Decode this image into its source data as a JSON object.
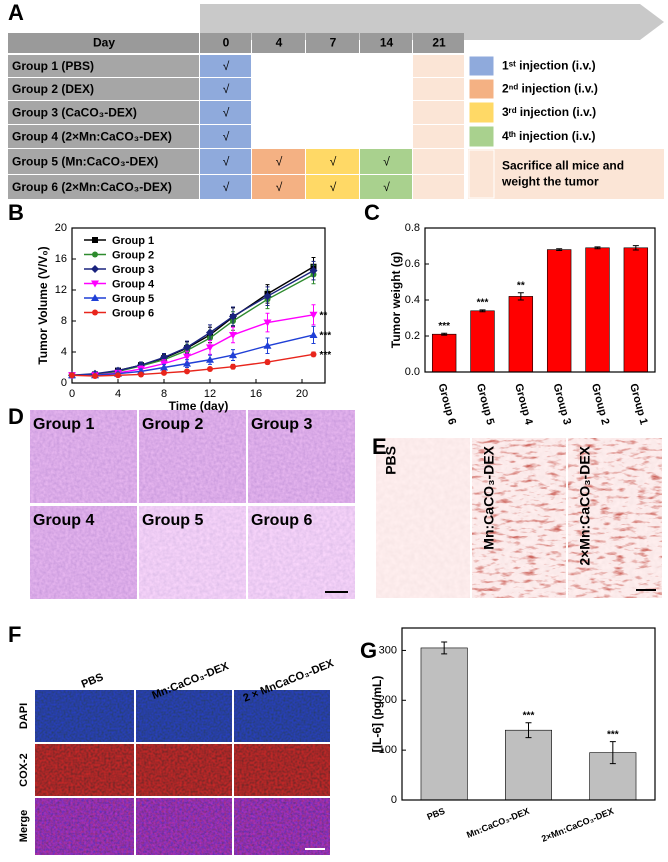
{
  "panel_labels": [
    "A",
    "B",
    "C",
    "D",
    "E",
    "F",
    "G"
  ],
  "schedule": {
    "header": [
      "Day",
      "0",
      "4",
      "7",
      "14",
      "21"
    ],
    "day_colors": [
      "#8faadc",
      "#f4b183",
      "#ffd966",
      "#a9d18e",
      "#fbe5d6"
    ],
    "rows": [
      {
        "name": "Group 1 (PBS)",
        "cells": [
          "√",
          null,
          null,
          null,
          null
        ]
      },
      {
        "name": "Group 2 (DEX)",
        "cells": [
          "√",
          null,
          null,
          null,
          null
        ]
      },
      {
        "name": "Group 3 (CaCO₃-DEX)",
        "cells": [
          "√",
          null,
          null,
          null,
          null
        ]
      },
      {
        "name": "Group 4 (2×Mn:CaCO₃-DEX)",
        "cells": [
          "√",
          null,
          null,
          null,
          null
        ]
      },
      {
        "name": "Group 5 (Mn:CaCO₃-DEX)",
        "cells": [
          "√",
          "√",
          "√",
          "√",
          null
        ]
      },
      {
        "name": "Group 6 (2×Mn:CaCO₃-DEX)",
        "cells": [
          "√",
          "√",
          "√",
          "√",
          null
        ]
      }
    ],
    "legend": [
      {
        "color": "#8faadc",
        "label": [
          "1ˢᵗ injection (i.v.)"
        ]
      },
      {
        "color": "#f4b183",
        "label": [
          "2ⁿᵈ injection (i.v.)"
        ]
      },
      {
        "color": "#ffd966",
        "label": [
          "3ʳᵈ injection (i.v.)"
        ]
      },
      {
        "color": "#a9d18e",
        "label": [
          "4ᵗʰ injection (i.v.)"
        ]
      },
      {
        "color": "#fbe5d6",
        "label": [
          "Sacrifice all mice and",
          "weight the tumor"
        ]
      }
    ]
  },
  "chart_data": [
    {
      "type": "line",
      "xlabel": "Time (day)",
      "ylabel": "Tumor Volume (V/V₀)",
      "x": [
        0,
        2,
        4,
        6,
        8,
        10,
        12,
        14,
        17,
        21
      ],
      "xlim": [
        0,
        22
      ],
      "xticks": [
        0,
        4,
        8,
        12,
        16,
        20
      ],
      "ylim": [
        0,
        20
      ],
      "yticks": [
        0,
        4,
        8,
        12,
        16,
        20
      ],
      "legend": "upper left",
      "series": [
        {
          "name": "Group 1",
          "color": "#000000",
          "marker": "square",
          "values": [
            1,
            1.1,
            1.6,
            2.3,
            3.2,
            4.5,
            6.2,
            8.5,
            11.5,
            15
          ],
          "errors": [
            0.1,
            0.2,
            0.3,
            0.4,
            0.5,
            0.8,
            1,
            1.2,
            1.2,
            1.2
          ]
        },
        {
          "name": "Group 2",
          "color": "#2e8b2e",
          "marker": "circle",
          "values": [
            1,
            1.1,
            1.5,
            2.2,
            3,
            4.2,
            5.8,
            8,
            10.8,
            14
          ],
          "errors": [
            0.1,
            0.2,
            0.3,
            0.4,
            0.5,
            0.8,
            1,
            1.2,
            1.2,
            1.2
          ]
        },
        {
          "name": "Group 3",
          "color": "#1a237e",
          "marker": "diamond",
          "values": [
            1,
            1.2,
            1.6,
            2.3,
            3.3,
            4.6,
            6.5,
            8.6,
            11.2,
            14.5
          ],
          "errors": [
            0.1,
            0.2,
            0.3,
            0.4,
            0.5,
            0.8,
            1,
            1.2,
            1.2,
            1.2
          ]
        },
        {
          "name": "Group 4",
          "color": "#ff00ff",
          "marker": "tri-down",
          "values": [
            1,
            1,
            1.3,
            1.8,
            2.5,
            3.4,
            4.6,
            6.2,
            7.8,
            8.8
          ],
          "errors": [
            0.1,
            0.2,
            0.3,
            0.4,
            0.5,
            0.7,
            0.9,
            1,
            1.2,
            1.3
          ],
          "annotation": "**"
        },
        {
          "name": "Group 5",
          "color": "#1f3fd6",
          "marker": "tri-up",
          "values": [
            1,
            1,
            1.2,
            1.5,
            2,
            2.5,
            3,
            3.6,
            4.8,
            6.2
          ],
          "errors": [
            0.1,
            0.1,
            0.2,
            0.3,
            0.4,
            0.5,
            0.6,
            0.7,
            1,
            1.1
          ],
          "annotation": "***"
        },
        {
          "name": "Group 6",
          "color": "#e8251c",
          "marker": "circle",
          "values": [
            1,
            0.9,
            1,
            1.1,
            1.3,
            1.5,
            1.8,
            2.1,
            2.7,
            3.7
          ],
          "errors": [
            0.1,
            0.1,
            0.1,
            0.1,
            0.2,
            0.2,
            0.2,
            0.3,
            0.3,
            0.3
          ],
          "annotation": "***"
        }
      ]
    },
    {
      "type": "bar",
      "ylabel": "Tumor weight (g)",
      "categories": [
        "Group 6",
        "Group 5",
        "Group 4",
        "Group 3",
        "Group 2",
        "Group 1"
      ],
      "values": [
        0.21,
        0.34,
        0.42,
        0.68,
        0.69,
        0.69
      ],
      "errors": [
        0.005,
        0.005,
        0.02,
        0.005,
        0.005,
        0.012
      ],
      "annotations": [
        "***",
        "***",
        "**",
        null,
        null,
        null
      ],
      "color": "#ff0000",
      "ylim": [
        0,
        0.8
      ],
      "yticks": [
        {
          "value": 0,
          "label": "0.0"
        },
        0.2,
        0.4,
        0.6,
        0.8
      ]
    },
    {
      "type": "bar",
      "ylabel": "[IL-6] (pg/mL)",
      "categories": [
        "PBS",
        "Mn:CaCO₃-DEX",
        "2×Mn:CaCO₃-DEX"
      ],
      "values": [
        305,
        140,
        95
      ],
      "errors": [
        12,
        15,
        22
      ],
      "annotations": [
        null,
        "***",
        "***"
      ],
      "color": "#bfbfbf",
      "ylim": [
        0,
        345
      ],
      "yticks": [
        0,
        100,
        200,
        300
      ]
    }
  ],
  "histology_d": {
    "labels": [
      "Group 1",
      "Group 2",
      "Group 3",
      "Group 4",
      "Group 5",
      "Group 6"
    ]
  },
  "staining_e": {
    "labels": [
      "PBS",
      "Mn:CaCO₃-DEX",
      "2×Mn:CaCO₃-DEX"
    ]
  },
  "fluorescence_f": {
    "columns": [
      "PBS",
      "Mn:CaCO₃-DEX",
      "2 × MnCaCO₃-DEX"
    ],
    "rows": [
      "DAPI",
      "COX-2",
      "Merge"
    ]
  }
}
